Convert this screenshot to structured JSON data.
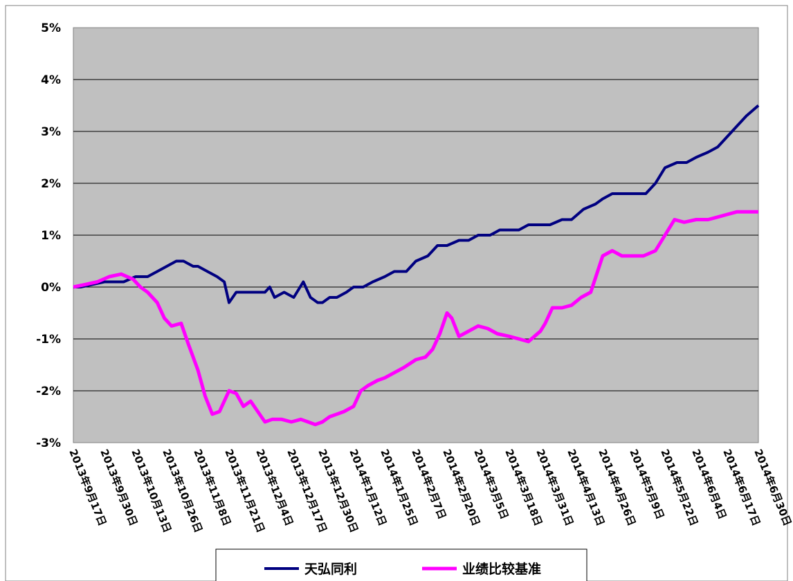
{
  "chart_data": {
    "type": "line",
    "title": "",
    "xlabel": "",
    "ylabel": "",
    "x_tick_labels": [
      "2013年9月17日",
      "2013年9月30日",
      "2013年10月13日",
      "2013年10月26日",
      "2013年11月8日",
      "2013年11月21日",
      "2013年12月4日",
      "2013年12月17日",
      "2013年12月30日",
      "2014年1月12日",
      "2014年1月25日",
      "2014年2月7日",
      "2014年2月20日",
      "2014年3月5日",
      "2014年3月18日",
      "2014年3月31日",
      "2014年4月13日",
      "2014年4月26日",
      "2014年5月9日",
      "2014年5月22日",
      "2014年6月4日",
      "2014年6月17日",
      "2014年6月30日"
    ],
    "y_tick_labels": [
      "5%",
      "4%",
      "3%",
      "2%",
      "1%",
      "0%",
      "-1%",
      "-2%",
      "-3%"
    ],
    "ylim": [
      -3,
      5
    ],
    "grid": "horizontal",
    "plot_background": "#c0c0c0",
    "legend_position": "bottom",
    "series": [
      {
        "name": "天弘同利",
        "color": "#000080",
        "x": [
          "2013-09-17",
          "2013-09-20",
          "2013-09-25",
          "2013-09-30",
          "2013-10-08",
          "2013-10-13",
          "2013-10-18",
          "2013-10-22",
          "2013-10-26",
          "2013-10-30",
          "2013-11-02",
          "2013-11-06",
          "2013-11-08",
          "2013-11-12",
          "2013-11-16",
          "2013-11-19",
          "2013-11-21",
          "2013-11-24",
          "2013-11-28",
          "2013-12-04",
          "2013-12-06",
          "2013-12-08",
          "2013-12-10",
          "2013-12-14",
          "2013-12-18",
          "2013-12-22",
          "2013-12-25",
          "2013-12-28",
          "2013-12-30",
          "2014-01-02",
          "2014-01-05",
          "2014-01-09",
          "2014-01-12",
          "2014-01-16",
          "2014-01-20",
          "2014-01-25",
          "2014-01-29",
          "2014-02-03",
          "2014-02-07",
          "2014-02-12",
          "2014-02-16",
          "2014-02-20",
          "2014-02-25",
          "2014-03-01",
          "2014-03-05",
          "2014-03-10",
          "2014-03-14",
          "2014-03-18",
          "2014-03-22",
          "2014-03-26",
          "2014-03-31",
          "2014-04-04",
          "2014-04-09",
          "2014-04-13",
          "2014-04-18",
          "2014-04-23",
          "2014-04-26",
          "2014-04-30",
          "2014-05-04",
          "2014-05-09",
          "2014-05-14",
          "2014-05-18",
          "2014-05-22",
          "2014-05-27",
          "2014-05-31",
          "2014-06-04",
          "2014-06-09",
          "2014-06-13",
          "2014-06-17",
          "2014-06-21",
          "2014-06-25",
          "2014-06-30"
        ],
        "values": [
          0.0,
          0.0,
          0.05,
          0.1,
          0.1,
          0.2,
          0.2,
          0.3,
          0.4,
          0.5,
          0.5,
          0.4,
          0.4,
          0.3,
          0.2,
          0.1,
          -0.3,
          -0.1,
          -0.1,
          -0.1,
          -0.1,
          0.0,
          -0.2,
          -0.1,
          -0.2,
          0.1,
          -0.2,
          -0.3,
          -0.3,
          -0.2,
          -0.2,
          -0.1,
          0.0,
          0.0,
          0.1,
          0.2,
          0.3,
          0.3,
          0.5,
          0.6,
          0.8,
          0.8,
          0.9,
          0.9,
          1.0,
          1.0,
          1.1,
          1.1,
          1.1,
          1.2,
          1.2,
          1.2,
          1.3,
          1.3,
          1.5,
          1.6,
          1.7,
          1.8,
          1.8,
          1.8,
          1.8,
          2.0,
          2.3,
          2.4,
          2.4,
          2.5,
          2.6,
          2.7,
          2.9,
          3.1,
          3.3,
          3.5
        ]
      },
      {
        "name": "业绩比较基准",
        "color": "#ff00ff",
        "x": [
          "2013-09-17",
          "2013-09-22",
          "2013-09-27",
          "2013-10-02",
          "2013-10-07",
          "2013-10-12",
          "2013-10-15",
          "2013-10-18",
          "2013-10-22",
          "2013-10-25",
          "2013-10-28",
          "2013-11-01",
          "2013-11-04",
          "2013-11-08",
          "2013-11-11",
          "2013-11-14",
          "2013-11-17",
          "2013-11-21",
          "2013-11-24",
          "2013-11-27",
          "2013-11-30",
          "2013-12-03",
          "2013-12-06",
          "2013-12-09",
          "2013-12-13",
          "2013-12-17",
          "2013-12-21",
          "2013-12-24",
          "2013-12-27",
          "2013-12-30",
          "2014-01-02",
          "2014-01-05",
          "2014-01-08",
          "2014-01-12",
          "2014-01-15",
          "2014-01-18",
          "2014-01-22",
          "2014-01-25",
          "2014-01-29",
          "2014-02-02",
          "2014-02-07",
          "2014-02-11",
          "2014-02-14",
          "2014-02-17",
          "2014-02-20",
          "2014-02-22",
          "2014-02-25",
          "2014-03-01",
          "2014-03-05",
          "2014-03-09",
          "2014-03-13",
          "2014-03-18",
          "2014-03-22",
          "2014-03-26",
          "2014-03-31",
          "2014-04-02",
          "2014-04-05",
          "2014-04-09",
          "2014-04-13",
          "2014-04-17",
          "2014-04-21",
          "2014-04-26",
          "2014-04-30",
          "2014-05-04",
          "2014-05-09",
          "2014-05-13",
          "2014-05-18",
          "2014-05-22",
          "2014-05-26",
          "2014-05-30",
          "2014-06-04",
          "2014-06-09",
          "2014-06-13",
          "2014-06-17",
          "2014-06-21",
          "2014-06-25",
          "2014-06-30"
        ],
        "values": [
          0.0,
          0.05,
          0.1,
          0.2,
          0.25,
          0.15,
          0.0,
          -0.1,
          -0.3,
          -0.6,
          -0.75,
          -0.7,
          -1.1,
          -1.6,
          -2.1,
          -2.45,
          -2.4,
          -2.0,
          -2.05,
          -2.3,
          -2.2,
          -2.4,
          -2.6,
          -2.55,
          -2.55,
          -2.6,
          -2.55,
          -2.6,
          -2.65,
          -2.6,
          -2.5,
          -2.45,
          -2.4,
          -2.3,
          -2.0,
          -1.9,
          -1.8,
          -1.75,
          -1.65,
          -1.55,
          -1.4,
          -1.35,
          -1.2,
          -0.9,
          -0.5,
          -0.6,
          -0.95,
          -0.85,
          -0.75,
          -0.8,
          -0.9,
          -0.95,
          -1.0,
          -1.05,
          -0.85,
          -0.7,
          -0.4,
          -0.4,
          -0.35,
          -0.2,
          -0.1,
          0.6,
          0.7,
          0.6,
          0.6,
          0.6,
          0.7,
          1.0,
          1.3,
          1.25,
          1.3,
          1.3,
          1.35,
          1.4,
          1.45,
          1.45,
          1.45
        ]
      }
    ]
  }
}
